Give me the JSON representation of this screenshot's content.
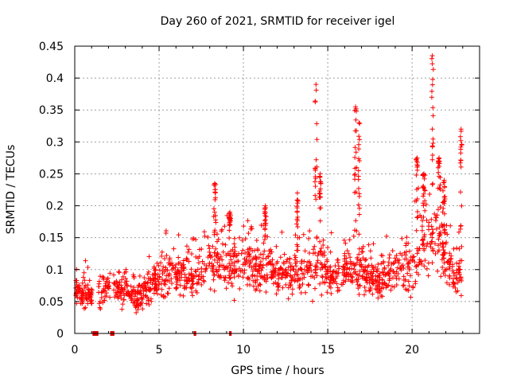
{
  "chart_data": {
    "type": "scatter",
    "title": "Day 260 of 2021, SRMTID for receiver igel",
    "xlabel": "GPS time / hours",
    "ylabel": "SRMTID / TECUs",
    "xlim": [
      0,
      24
    ],
    "ylim": [
      0,
      0.45
    ],
    "xticks": [
      0,
      5,
      10,
      15,
      20
    ],
    "xtick_labels": [
      "0",
      "5",
      "10",
      "15",
      "20"
    ],
    "yticks": [
      0,
      0.05,
      0.1,
      0.15,
      0.2,
      0.25,
      0.3,
      0.35,
      0.4,
      0.45
    ],
    "ytick_labels": [
      "0",
      "0.05",
      "0.1",
      "0.15",
      "0.2",
      "0.25",
      "0.3",
      "0.35",
      "0.4",
      "0.45"
    ],
    "grid": true,
    "marker": "+",
    "series_color": "#ff0000",
    "flag_color": "#dd0000",
    "zero_flags": [
      {
        "start": 1.05,
        "end": 1.4
      },
      {
        "start": 2.1,
        "end": 2.35
      },
      {
        "start": 7.05,
        "end": 7.2
      },
      {
        "start": 9.15,
        "end": 9.3
      }
    ],
    "envelope": [
      [
        0.0,
        0.07
      ],
      [
        0.5,
        0.06
      ],
      [
        1.0,
        0.06
      ],
      [
        1.3,
        0.06
      ],
      [
        1.5,
        0.065
      ],
      [
        2.0,
        0.075
      ],
      [
        2.5,
        0.07
      ],
      [
        3.0,
        0.07
      ],
      [
        3.5,
        0.06
      ],
      [
        4.0,
        0.06
      ],
      [
        4.5,
        0.075
      ],
      [
        5.0,
        0.08
      ],
      [
        5.5,
        0.09
      ],
      [
        6.0,
        0.095
      ],
      [
        6.5,
        0.09
      ],
      [
        7.0,
        0.08
      ],
      [
        7.5,
        0.1
      ],
      [
        8.0,
        0.1
      ],
      [
        8.5,
        0.12
      ],
      [
        9.0,
        0.105
      ],
      [
        9.5,
        0.11
      ],
      [
        10.0,
        0.105
      ],
      [
        10.5,
        0.11
      ],
      [
        11.0,
        0.1
      ],
      [
        11.5,
        0.1
      ],
      [
        12.0,
        0.095
      ],
      [
        12.5,
        0.095
      ],
      [
        13.0,
        0.09
      ],
      [
        13.5,
        0.095
      ],
      [
        14.0,
        0.1
      ],
      [
        14.5,
        0.11
      ],
      [
        15.0,
        0.09
      ],
      [
        15.5,
        0.09
      ],
      [
        16.0,
        0.095
      ],
      [
        16.5,
        0.1
      ],
      [
        17.0,
        0.1
      ],
      [
        17.5,
        0.085
      ],
      [
        18.0,
        0.085
      ],
      [
        18.5,
        0.09
      ],
      [
        19.0,
        0.1
      ],
      [
        19.5,
        0.105
      ],
      [
        20.0,
        0.1
      ],
      [
        20.5,
        0.13
      ],
      [
        21.0,
        0.145
      ],
      [
        21.5,
        0.16
      ],
      [
        22.0,
        0.11
      ],
      [
        22.5,
        0.09
      ],
      [
        23.0,
        0.1
      ]
    ],
    "data_gaps": [
      [
        1.05,
        1.4
      ],
      [
        2.1,
        2.3
      ],
      [
        22.95,
        24.0
      ]
    ],
    "spikes": [
      {
        "x": 8.3,
        "peak": 0.235,
        "width": 0.15
      },
      {
        "x": 9.2,
        "peak": 0.19,
        "width": 0.1
      },
      {
        "x": 11.3,
        "peak": 0.2,
        "width": 0.1
      },
      {
        "x": 13.2,
        "peak": 0.22,
        "width": 0.1
      },
      {
        "x": 14.3,
        "peak": 0.39,
        "width": 0.12
      },
      {
        "x": 14.55,
        "peak": 0.25,
        "width": 0.1
      },
      {
        "x": 16.65,
        "peak": 0.355,
        "width": 0.12
      },
      {
        "x": 16.85,
        "peak": 0.33,
        "width": 0.08
      },
      {
        "x": 20.3,
        "peak": 0.275,
        "width": 0.15
      },
      {
        "x": 20.7,
        "peak": 0.25,
        "width": 0.15
      },
      {
        "x": 21.2,
        "peak": 0.435,
        "width": 0.12
      },
      {
        "x": 21.6,
        "peak": 0.275,
        "width": 0.15
      },
      {
        "x": 21.9,
        "peak": 0.24,
        "width": 0.15
      },
      {
        "x": 22.9,
        "peak": 0.32,
        "width": 0.1
      }
    ]
  }
}
